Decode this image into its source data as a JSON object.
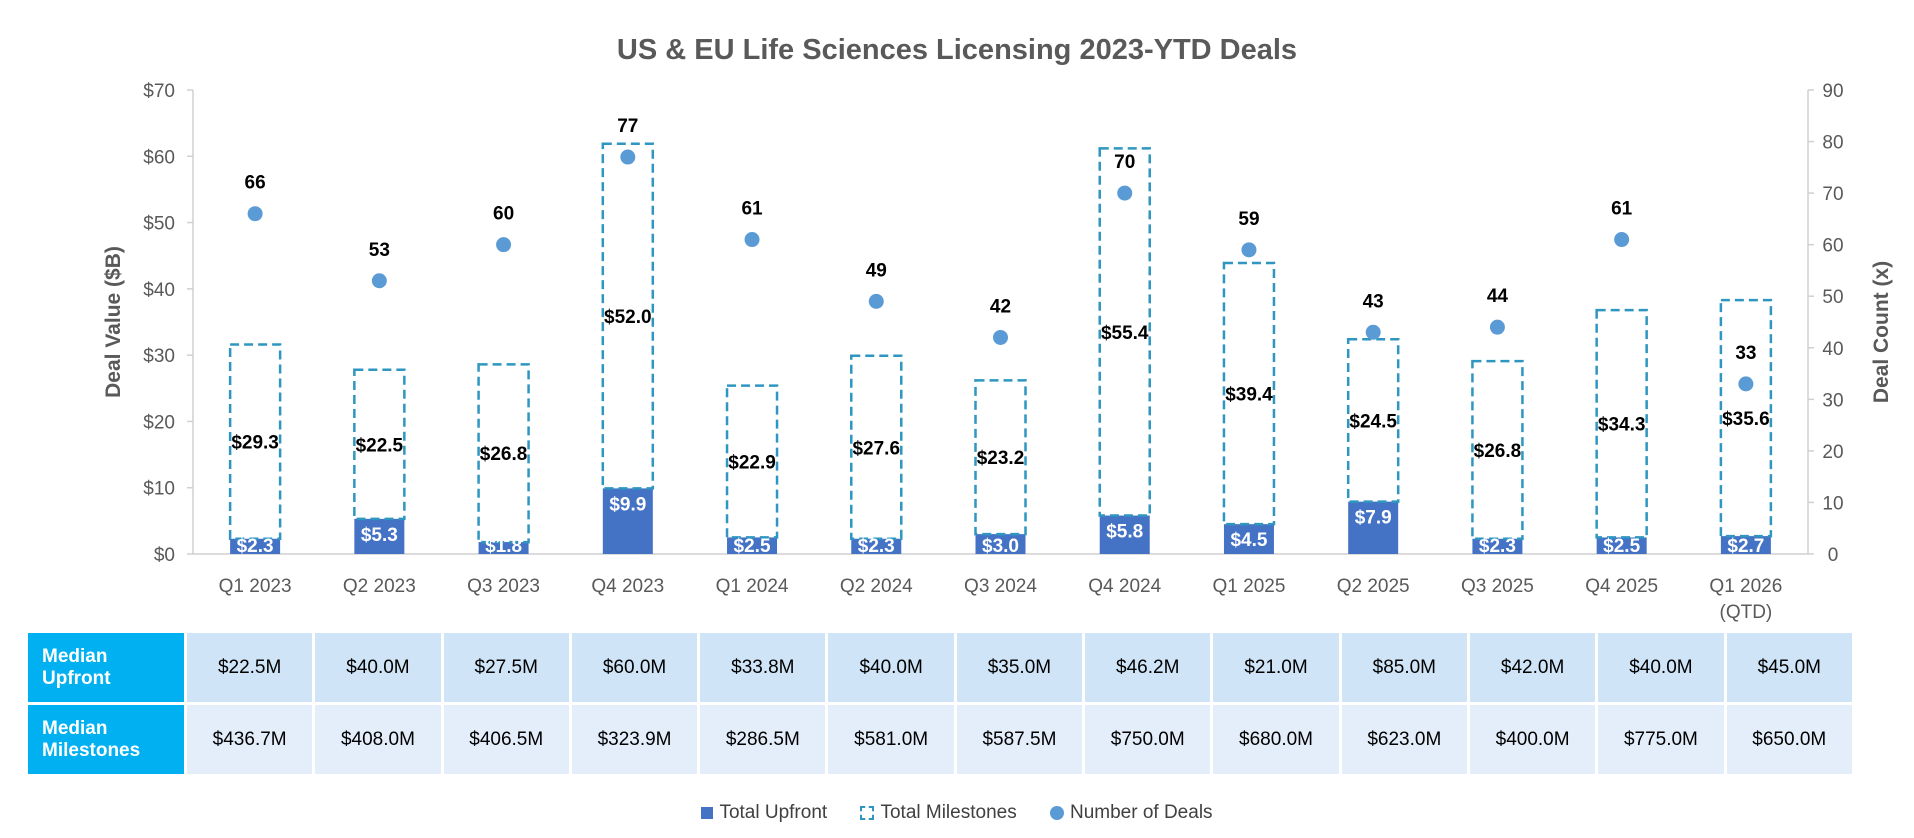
{
  "chart_data": {
    "type": "bar",
    "title": "US & EU Life Sciences Licensing 2023-YTD Deals",
    "ylabel": "Deal Value ($B)",
    "ylabel_right": "Deal Count (x)",
    "ylim": [
      0,
      70
    ],
    "ylim_right": [
      0,
      90
    ],
    "yticks": [
      "$0",
      "$10",
      "$20",
      "$30",
      "$40",
      "$50",
      "$60",
      "$70"
    ],
    "yticks_right": [
      "0",
      "10",
      "20",
      "30",
      "40",
      "50",
      "60",
      "70",
      "80",
      "90"
    ],
    "categories": [
      "Q1 2023",
      "Q2 2023",
      "Q3 2023",
      "Q4 2023",
      "Q1 2024",
      "Q2 2024",
      "Q3 2024",
      "Q4 2024",
      "Q1 2025",
      "Q2 2025",
      "Q3 2025",
      "Q4 2025",
      "Q1 2026"
    ],
    "category_sublabels": [
      "",
      "",
      "",
      "",
      "",
      "",
      "",
      "",
      "",
      "",
      "",
      "",
      "(QTD)"
    ],
    "series": [
      {
        "name": "Total Upfront",
        "type": "bar",
        "axis": "left",
        "color": "#4472c4",
        "values": [
          2.3,
          5.3,
          1.8,
          9.9,
          2.5,
          2.3,
          3.0,
          5.8,
          4.5,
          7.9,
          2.3,
          2.5,
          2.7
        ],
        "labels": [
          "$2.3",
          "$5.3",
          "$1.8",
          "$9.9",
          "$2.5",
          "$2.3",
          "$3.0",
          "$5.8",
          "$4.5",
          "$7.9",
          "$2.3",
          "$2.5",
          "$2.7"
        ]
      },
      {
        "name": "Total Milestones",
        "type": "bar",
        "axis": "left",
        "color": "#2e96c0",
        "values": [
          29.3,
          22.5,
          26.8,
          52.0,
          22.9,
          27.6,
          23.2,
          55.4,
          39.4,
          24.5,
          26.8,
          34.3,
          35.6
        ],
        "labels": [
          "$29.3",
          "$22.5",
          "$26.8",
          "$52.0",
          "$22.9",
          "$27.6",
          "$23.2",
          "$55.4",
          "$39.4",
          "$24.5",
          "$26.8",
          "$34.3",
          "$35.6"
        ]
      },
      {
        "name": "Number of Deals",
        "type": "scatter",
        "axis": "right",
        "color": "#5b9bd5",
        "values": [
          66,
          53,
          60,
          77,
          61,
          49,
          42,
          70,
          59,
          43,
          44,
          61,
          33
        ],
        "labels": [
          "66",
          "53",
          "60",
          "77",
          "61",
          "49",
          "42",
          "70",
          "59",
          "43",
          "44",
          "61",
          "33"
        ]
      }
    ],
    "legend_placement": "bottom",
    "grid": false
  },
  "table": {
    "rows": [
      {
        "label_line1": "Median",
        "label_line2": "Upfront",
        "values": [
          "$22.5M",
          "$40.0M",
          "$27.5M",
          "$60.0M",
          "$33.8M",
          "$40.0M",
          "$35.0M",
          "$46.2M",
          "$21.0M",
          "$85.0M",
          "$42.0M",
          "$40.0M",
          "$45.0M"
        ]
      },
      {
        "label_line1": "Median",
        "label_line2": "Milestones",
        "values": [
          "$436.7M",
          "$408.0M",
          "$406.5M",
          "$323.9M",
          "$286.5M",
          "$581.0M",
          "$587.5M",
          "$750.0M",
          "$680.0M",
          "$623.0M",
          "$400.0M",
          "$775.0M",
          "$650.0M"
        ]
      }
    ]
  },
  "legend": {
    "upfront": "Total Upfront",
    "milestones": "Total Milestones",
    "deals": "Number of Deals"
  }
}
